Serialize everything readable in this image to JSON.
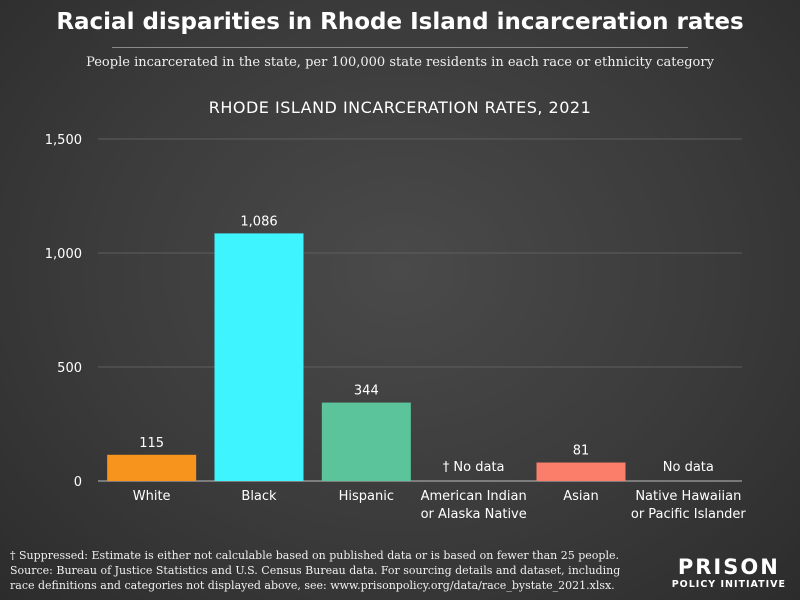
{
  "header": {
    "title": "Racial disparities in Rhode Island incarceration rates",
    "subtitle": "People incarcerated in the state, per 100,000 state residents in each race or ethnicity category"
  },
  "chart_data": {
    "type": "bar",
    "title": "RHODE ISLAND INCARCERATION RATES, 2021",
    "xlabel": "",
    "ylabel": "",
    "ylim": [
      0,
      1500
    ],
    "y_ticks": [
      0,
      500,
      1000,
      1500
    ],
    "y_tick_labels": [
      "0",
      "500",
      "1,000",
      "1,500"
    ],
    "grid": true,
    "categories": [
      [
        "White"
      ],
      [
        "Black"
      ],
      [
        "Hispanic"
      ],
      [
        "American Indian",
        "or Alaska Native"
      ],
      [
        "Asian"
      ],
      [
        "Native Hawaiian",
        "or Pacific Islander"
      ]
    ],
    "values": [
      115,
      1086,
      344,
      null,
      81,
      null
    ],
    "data_labels": [
      "115",
      "1,086",
      "344",
      "† No data",
      "81",
      "No data"
    ],
    "colors": [
      "#f7941d",
      "#3df4ff",
      "#5cc49a",
      "#888888",
      "#fb7e6b",
      "#888888"
    ]
  },
  "footer": {
    "footnote_lines": [
      "† Suppressed: Estimate is either not calculable based on published data or is based on fewer than 25 people.",
      "Source: Bureau of Justice Statistics and U.S. Census Bureau data. For sourcing details and dataset, including",
      "race definitions and categories not displayed above, see: www.prisonpolicy.org/data/race_bystate_2021.xlsx."
    ],
    "logo_top": "PRISON",
    "logo_bottom": "POLICY INITIATIVE"
  }
}
